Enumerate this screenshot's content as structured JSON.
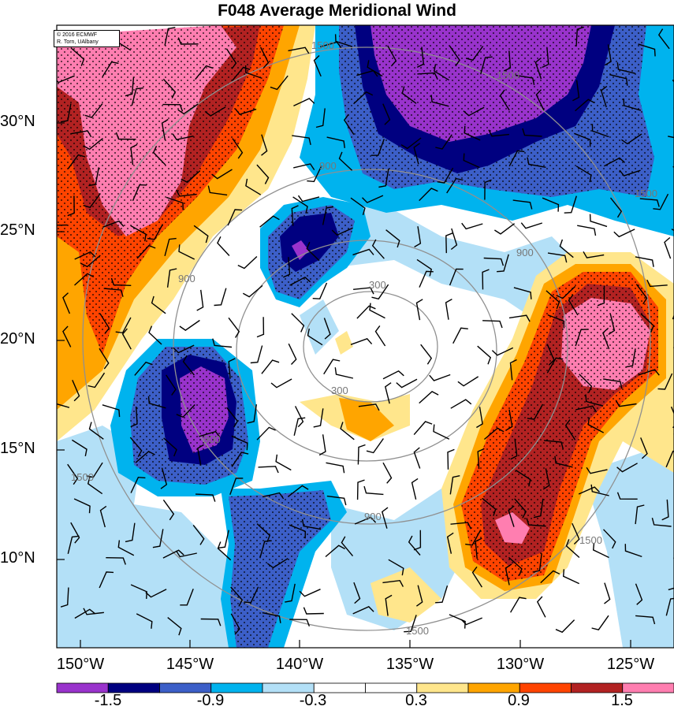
{
  "title": "F048 Average Meridional Wind",
  "copyright": {
    "line1": "© 2016 ECMWF",
    "line2": "R. Torn, UAlbany"
  },
  "axes": {
    "lat_labels": [
      "30°N",
      "25°N",
      "20°N",
      "15°N",
      "10°N"
    ],
    "lon_labels": [
      "150°W",
      "145°W",
      "140°W",
      "135°W",
      "130°W",
      "125°W"
    ]
  },
  "contours": {
    "labels": [
      "300",
      "300",
      "900",
      "900",
      "900",
      "900",
      "900",
      "1500",
      "1500",
      "1500",
      "1500",
      "1500",
      "1500"
    ]
  },
  "colorbar": {
    "labels": [
      "-1.5",
      "-0.9",
      "-0.3",
      "0.3",
      "0.9",
      "1.5"
    ],
    "colors": [
      "#9933cc",
      "#000080",
      "#3c5fc8",
      "#00b3ee",
      "#b3e0f7",
      "#ffffff",
      "#ffffff",
      "#ffe68c",
      "#ffa500",
      "#ff4400",
      "#b22222",
      "#ff7eb0"
    ]
  }
}
